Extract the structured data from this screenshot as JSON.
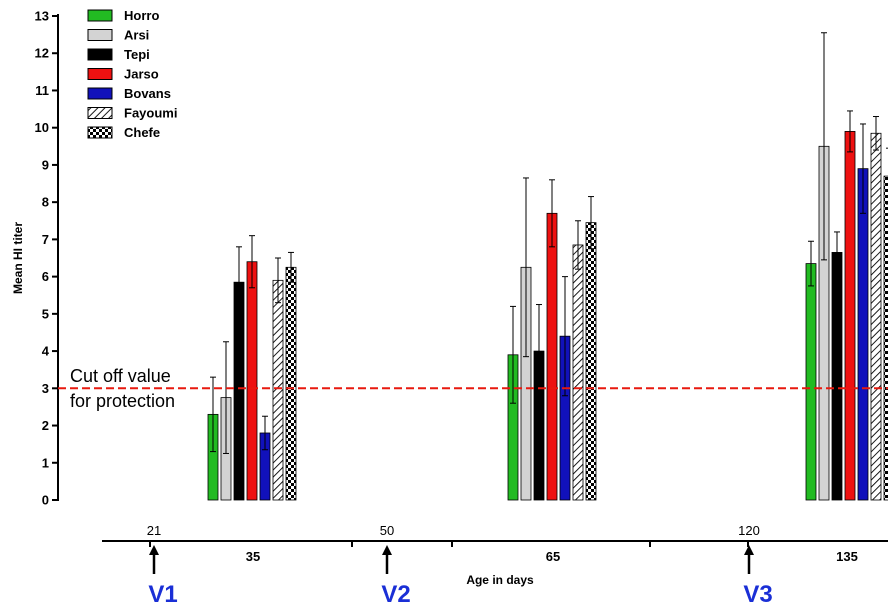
{
  "chart_data": {
    "type": "bar",
    "xlabel": "Age in days",
    "ylabel": "Mean HI titer",
    "ylim": [
      0,
      13
    ],
    "yticks": [
      "0",
      "1",
      "2",
      "3",
      "4",
      "5",
      "6",
      "7",
      "8",
      "9",
      "10",
      "11",
      "12",
      "13"
    ],
    "categories": [
      "35",
      "65",
      "135"
    ],
    "series": [
      {
        "name": "Horro",
        "color": "#22bb22",
        "pattern": "solid",
        "values": [
          2.3,
          3.9,
          6.35
        ],
        "errors": [
          1.0,
          1.3,
          0.6
        ]
      },
      {
        "name": "Arsi",
        "color": "#d3d3d3",
        "pattern": "solid",
        "values": [
          2.75,
          6.25,
          9.5
        ],
        "errors": [
          1.5,
          2.4,
          3.05
        ]
      },
      {
        "name": "Tepi",
        "color": "#000000",
        "pattern": "solid",
        "values": [
          5.85,
          4.0,
          6.65
        ],
        "errors": [
          0.95,
          1.25,
          0.55
        ]
      },
      {
        "name": "Jarso",
        "color": "#ee1111",
        "pattern": "solid",
        "values": [
          6.4,
          7.7,
          9.9
        ],
        "errors": [
          0.7,
          0.9,
          0.55
        ]
      },
      {
        "name": "Bovans",
        "color": "#1111bb",
        "pattern": "solid",
        "values": [
          1.8,
          4.4,
          8.9
        ],
        "errors": [
          0.45,
          1.6,
          1.2
        ]
      },
      {
        "name": "Fayoumi",
        "color": "#ffffff",
        "pattern": "hatch",
        "values": [
          5.9,
          6.85,
          9.85
        ],
        "errors": [
          0.6,
          0.65,
          0.45
        ]
      },
      {
        "name": "Chefe",
        "color": "#ffffff",
        "pattern": "checker",
        "values": [
          6.25,
          7.45,
          8.7
        ],
        "errors": [
          0.4,
          0.7,
          0.75
        ]
      }
    ],
    "reference_line": {
      "value": 3,
      "color": "#e8190f",
      "style": "dashed"
    },
    "annotations": [
      "Cut off value",
      "for protection"
    ],
    "vaccinations": [
      {
        "label": "V1",
        "day": "21"
      },
      {
        "label": "V2",
        "day": "50"
      },
      {
        "label": "V3",
        "day": "120"
      }
    ],
    "vaccination_color": "#1a2fd6",
    "legend_position": "top-left",
    "grid": false
  }
}
